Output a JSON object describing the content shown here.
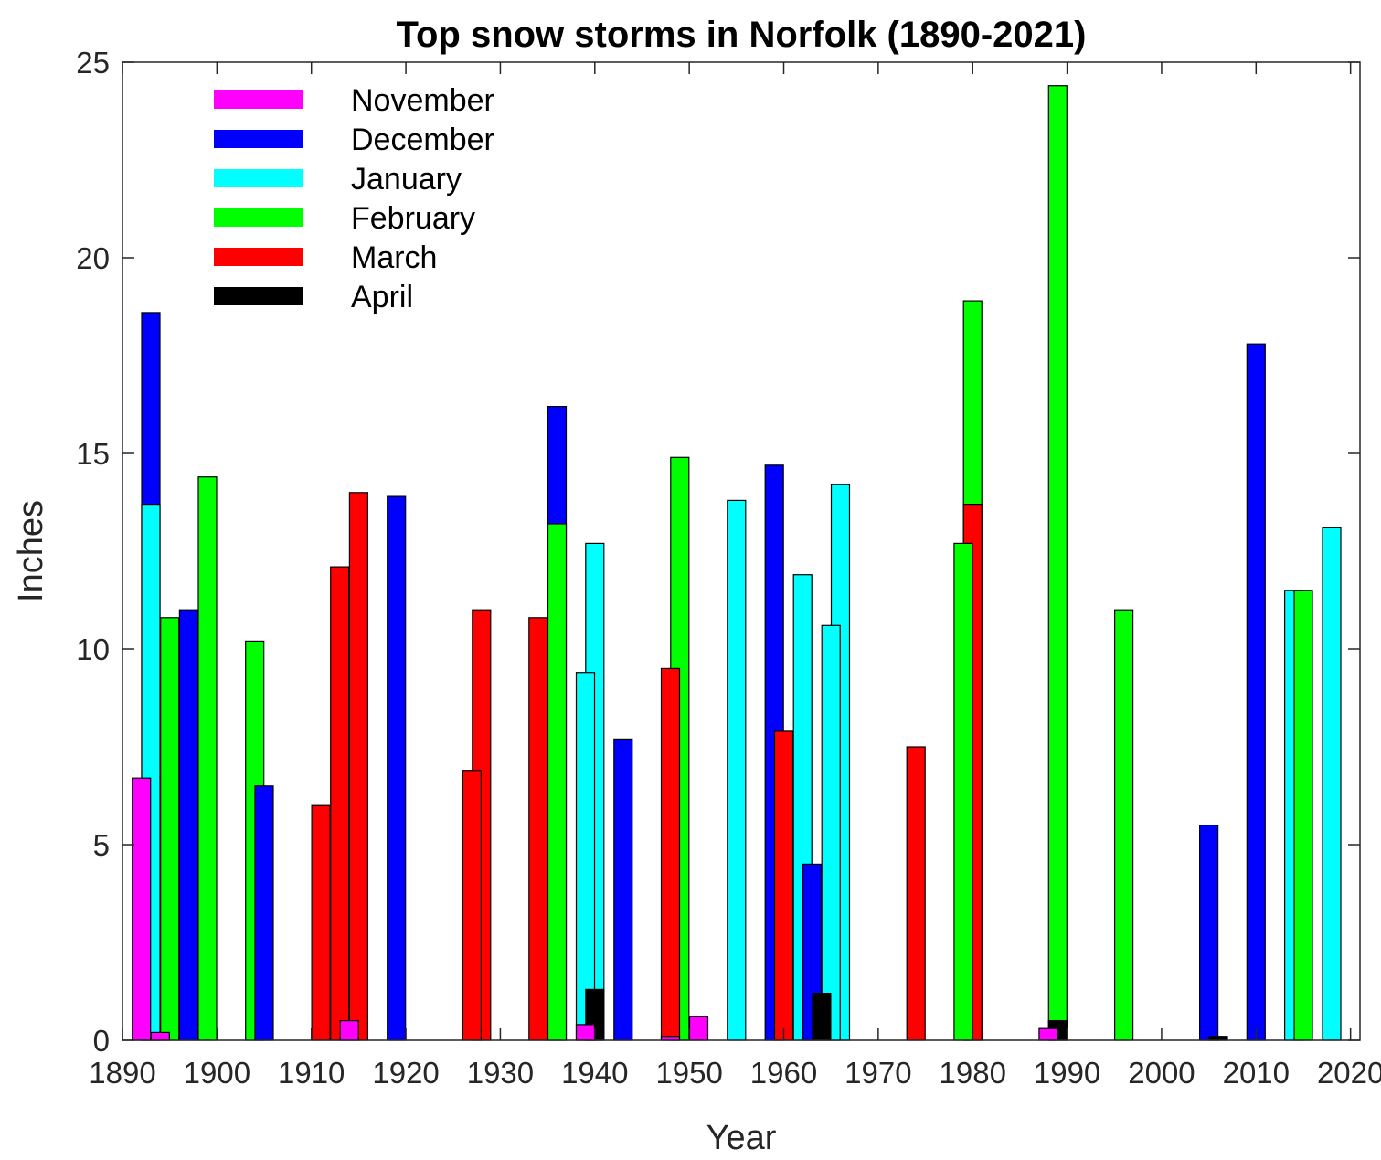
{
  "chart_data": {
    "type": "bar",
    "title": "Top snow storms in Norfolk (1890-2021)",
    "xlabel": "Year",
    "ylabel": "Inches",
    "xlim": [
      1890,
      2021
    ],
    "ylim": [
      0,
      25
    ],
    "xticks": [
      1890,
      1900,
      1910,
      1920,
      1930,
      1940,
      1950,
      1960,
      1970,
      1980,
      1990,
      2000,
      2010,
      2020
    ],
    "yticks": [
      0,
      5,
      10,
      15,
      20,
      25
    ],
    "grid": false,
    "legend_position": "top-left",
    "series": [
      {
        "name": "November",
        "color": "#ff00ff",
        "points": [
          {
            "x": 1892,
            "y": 6.7
          },
          {
            "x": 1894,
            "y": 0.2
          },
          {
            "x": 1914,
            "y": 0.5
          },
          {
            "x": 1939,
            "y": 0.4
          },
          {
            "x": 1948,
            "y": 0.1
          },
          {
            "x": 1951,
            "y": 0.6
          },
          {
            "x": 1988,
            "y": 0.3
          }
        ]
      },
      {
        "name": "December",
        "color": "#0000ff",
        "points": [
          {
            "x": 1893,
            "y": 18.6
          },
          {
            "x": 1897,
            "y": 11.0
          },
          {
            "x": 1905,
            "y": 6.5
          },
          {
            "x": 1919,
            "y": 13.9
          },
          {
            "x": 1936,
            "y": 16.2
          },
          {
            "x": 1943,
            "y": 7.7
          },
          {
            "x": 1959,
            "y": 14.7
          },
          {
            "x": 1963,
            "y": 4.5
          },
          {
            "x": 2005,
            "y": 5.5
          },
          {
            "x": 2010,
            "y": 17.8
          }
        ]
      },
      {
        "name": "January",
        "color": "#00ffff",
        "points": [
          {
            "x": 1893,
            "y": 13.7
          },
          {
            "x": 1939,
            "y": 9.4
          },
          {
            "x": 1940,
            "y": 12.7
          },
          {
            "x": 1955,
            "y": 13.8
          },
          {
            "x": 1962,
            "y": 11.9
          },
          {
            "x": 1965,
            "y": 10.6
          },
          {
            "x": 1966,
            "y": 14.2
          },
          {
            "x": 2014,
            "y": 11.5
          },
          {
            "x": 2018,
            "y": 13.1
          }
        ]
      },
      {
        "name": "February",
        "color": "#00ff00",
        "points": [
          {
            "x": 1895,
            "y": 10.8
          },
          {
            "x": 1899,
            "y": 14.4
          },
          {
            "x": 1904,
            "y": 10.2
          },
          {
            "x": 1936,
            "y": 13.2
          },
          {
            "x": 1949,
            "y": 14.9
          },
          {
            "x": 1979,
            "y": 12.7
          },
          {
            "x": 1980,
            "y": 18.9
          },
          {
            "x": 1989,
            "y": 24.4
          },
          {
            "x": 1996,
            "y": 11.0
          },
          {
            "x": 2015,
            "y": 11.5
          }
        ]
      },
      {
        "name": "March",
        "color": "#ff0000",
        "points": [
          {
            "x": 1911,
            "y": 6.0
          },
          {
            "x": 1913,
            "y": 12.1
          },
          {
            "x": 1915,
            "y": 14.0
          },
          {
            "x": 1927,
            "y": 6.9
          },
          {
            "x": 1928,
            "y": 11.0
          },
          {
            "x": 1934,
            "y": 10.8
          },
          {
            "x": 1948,
            "y": 9.5
          },
          {
            "x": 1960,
            "y": 7.9
          },
          {
            "x": 1974,
            "y": 7.5
          },
          {
            "x": 1980,
            "y": 13.7
          }
        ]
      },
      {
        "name": "April",
        "color": "#000000",
        "points": [
          {
            "x": 1940,
            "y": 1.3
          },
          {
            "x": 1964,
            "y": 1.2
          },
          {
            "x": 1989,
            "y": 0.5
          },
          {
            "x": 2006,
            "y": 0.1
          }
        ]
      }
    ]
  }
}
